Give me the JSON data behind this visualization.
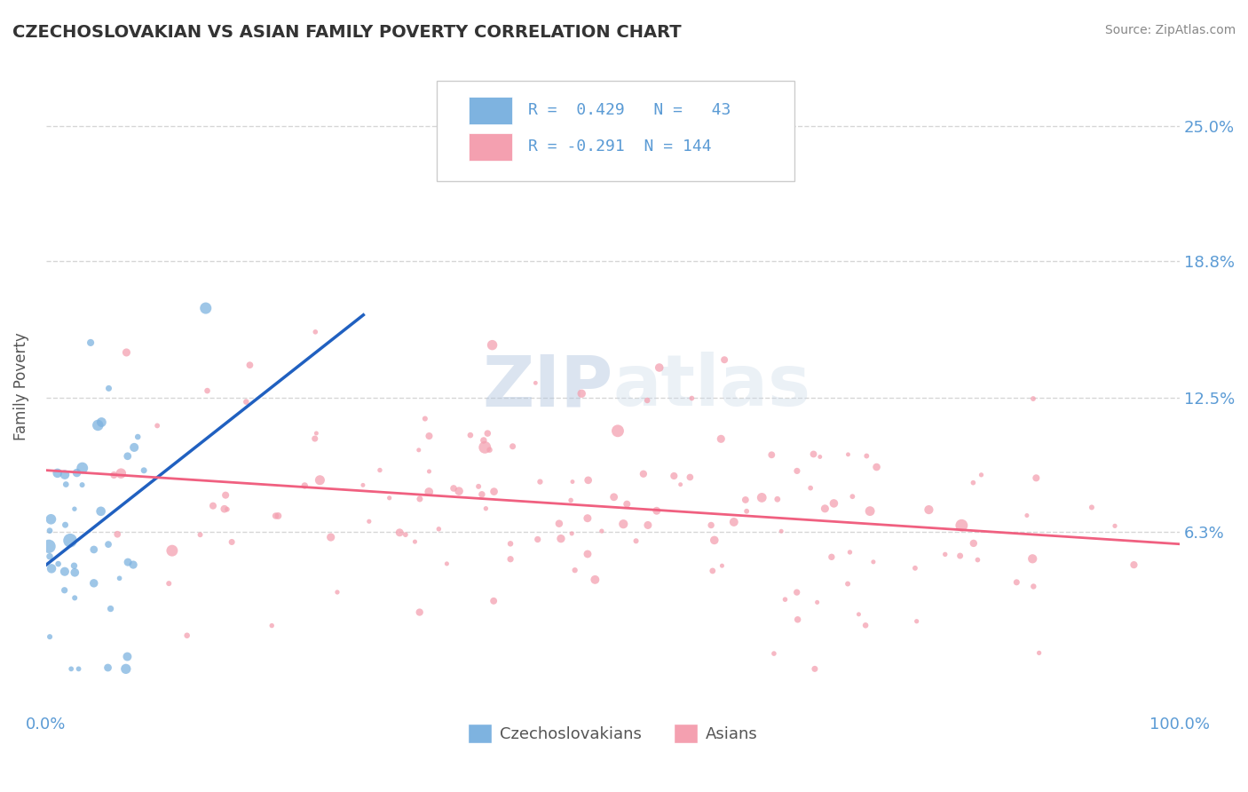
{
  "title": "CZECHOSLOVAKIAN VS ASIAN FAMILY POVERTY CORRELATION CHART",
  "source": "Source: ZipAtlas.com",
  "ylabel": "Family Poverty",
  "xlim": [
    0.0,
    1.0
  ],
  "ylim": [
    -0.02,
    0.28
  ],
  "ytick_vals": [
    0.0,
    0.063,
    0.125,
    0.188,
    0.25
  ],
  "ytick_labels": [
    "",
    "6.3%",
    "12.5%",
    "18.8%",
    "25.0%"
  ],
  "xtick_vals": [
    0.0,
    1.0
  ],
  "xtick_labels": [
    "0.0%",
    "100.0%"
  ],
  "background_color": "#ffffff",
  "grid_color": "#cccccc",
  "czech_color": "#7eb3e0",
  "asian_color": "#f4a0b0",
  "czech_line_color": "#2060c0",
  "asian_line_color": "#f06080",
  "czech_R": 0.429,
  "czech_N": 43,
  "asian_R": -0.291,
  "asian_N": 144,
  "legend_label_czech": "Czechoslovakians",
  "legend_label_asian": "Asians",
  "title_color": "#333333",
  "axis_label_color": "#5b9bd5",
  "tick_label_color": "#555555",
  "source_color": "#888888"
}
